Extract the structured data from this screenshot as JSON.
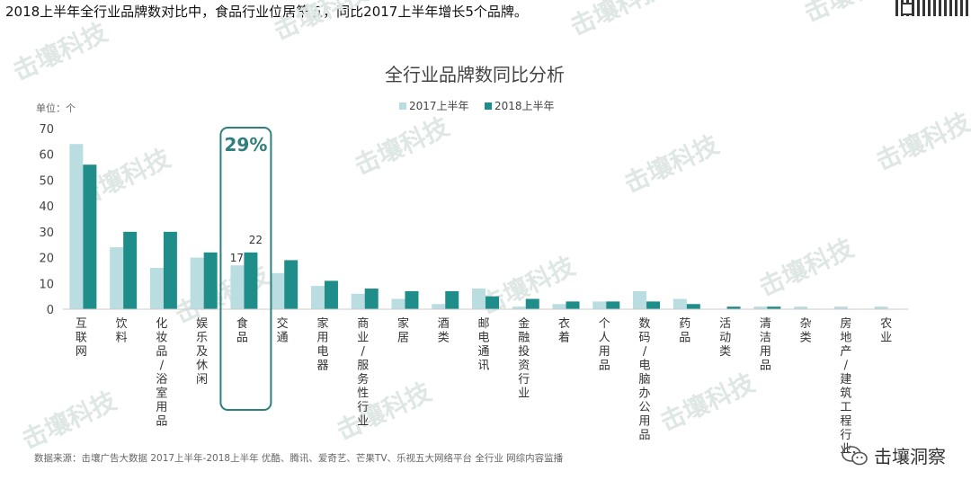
{
  "headline": "2018上半年全行业品牌数对比中，食品行业位居第五，同比2017上半年增长5个品牌。",
  "watermark": "击壤科技",
  "brand": {
    "label": "击壤洞察",
    "icon": "wechat-icon"
  },
  "source": "数据来源：击壤广告大数据  2017上半年-2018上半年   优酷、腾讯、爱奇艺、芒果TV、乐视五大网络平台   全行业 网综内容监播",
  "colors": {
    "s2017": "#b9dde0",
    "s2018": "#1f8e8b",
    "highlight": "#2f7f7c",
    "axis": "#cccccc"
  },
  "chart_data": {
    "type": "bar",
    "title": "全行业品牌数同比分析",
    "unit_label": "单位：个",
    "legend_position": "top",
    "ylim": [
      0,
      70
    ],
    "yticks": [
      "0",
      "10",
      "20",
      "30",
      "40",
      "50",
      "60",
      "70"
    ],
    "categories": [
      "互联网",
      "饮料",
      "化妆品/浴室用品",
      "娱乐及休闲",
      "食品",
      "交通",
      "家用电器",
      "商业/服务性行业",
      "家居",
      "酒类",
      "邮电通讯",
      "金融投资行业",
      "衣着",
      "个人用品",
      "数码/电脑办公用品",
      "药品",
      "活动类",
      "清洁用品",
      "杂类",
      "房地产/建筑工程行业",
      "农业"
    ],
    "series": [
      {
        "name": "2017上半年",
        "values": [
          64,
          24,
          16,
          20,
          17,
          14,
          9,
          6,
          4,
          2,
          8,
          1,
          2,
          3,
          7,
          4,
          0,
          1,
          1,
          1,
          1
        ]
      },
      {
        "name": "2018上半年",
        "values": [
          56,
          30,
          30,
          22,
          22,
          19,
          11,
          8,
          7,
          7,
          5,
          4,
          3,
          3,
          3,
          2,
          1,
          1,
          0,
          0,
          0
        ]
      }
    ],
    "annotations": {
      "highlight_category": "食品",
      "growth_label": "29%",
      "value_labels": {
        "s2017": "17",
        "s2018": "22"
      }
    }
  }
}
